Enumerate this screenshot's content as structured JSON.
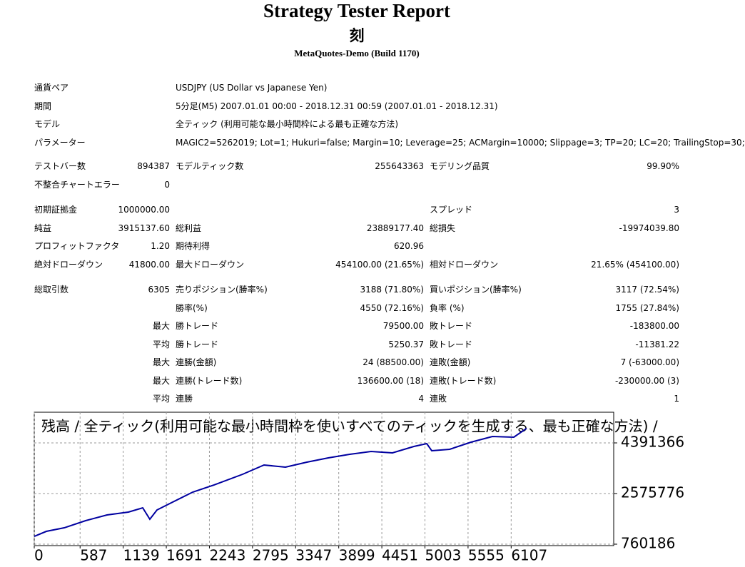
{
  "report": {
    "title": "Strategy Tester Report",
    "subtitle": "刻",
    "build": "MetaQuotes-Demo (Build 1170)",
    "rows": [
      [
        "通貨ペア",
        "USDJPY (US Dollar vs Japanese Yen)"
      ],
      [
        "期間",
        "5分足(M5) 2007.01.01 00:00 - 2018.12.31 00:59 (2007.01.01 - 2018.12.31)"
      ],
      [
        "モデル",
        "全ティック (利用可能な最小時間枠による最も正確な方法)"
      ],
      [
        "パラメーター",
        "MAGIC2=5262019; Lot=1; Hukuri=false; Margin=10; Leverage=25; ACMargin=10000; Slippage=3; TP=20; LC=20; TrailingStop=30;"
      ],
      [
        "テストバー数",
        "894387",
        "モデルティック数",
        "255643363",
        "モデリング品質",
        "99.90%"
      ],
      [
        "不整合チャートエラー",
        "0"
      ],
      [
        "初期証拠金",
        "1000000.00",
        "スプレッド",
        "3"
      ],
      [
        "純益",
        "3915137.60",
        "総利益",
        "23889177.40",
        "総損失",
        "-19974039.80"
      ],
      [
        "プロフィットファクタ",
        "1.20",
        "期待利得",
        "620.96"
      ],
      [
        "絶対ドローダウン",
        "41800.00",
        "最大ドローダウン",
        "454100.00 (21.65%)",
        "相対ドローダウン",
        "21.65% (454100.00)"
      ],
      [
        "総取引数",
        "6305",
        "売りポジション(勝率%)",
        "3188 (71.80%)",
        "買いポジション(勝率%)",
        "3117 (72.54%)"
      ],
      [
        "勝率(%)",
        "4550 (72.16%)",
        "負率 (%)",
        "1755 (27.84%)"
      ],
      [
        "最大",
        "勝トレード",
        "79500.00",
        "敗トレード",
        "-183800.00"
      ],
      [
        "平均",
        "勝トレード",
        "5250.37",
        "敗トレード",
        "-11381.22"
      ],
      [
        "最大",
        "連勝(金額)",
        "24 (88500.00)",
        "連敗(金額)",
        "7 (-63000.00)"
      ],
      [
        "最大",
        "連勝(トレード数)",
        "136600.00 (18)",
        "連敗(トレード数)",
        "-230000.00 (3)"
      ],
      [
        "平均",
        "連勝",
        "4",
        "連敗",
        "1"
      ]
    ]
  },
  "chart_data": {
    "type": "line",
    "title": "残高 / 全ティック(利用可能な最小時間枠を使いすべてのティックを生成する、最も正確な方法) /",
    "x": [
      0,
      155,
      384,
      658,
      932,
      1206,
      1389,
      1480,
      1572,
      1754,
      2029,
      2303,
      2668,
      2942,
      3217,
      3491,
      3765,
      4039,
      4313,
      4587,
      4861,
      5026,
      5090,
      5319,
      5592,
      5867,
      6141,
      6305
    ],
    "values": [
      1041000,
      1220000,
      1348000,
      1604000,
      1809000,
      1911000,
      2064000,
      1655000,
      1988000,
      2243000,
      2627000,
      2883000,
      3266000,
      3599000,
      3522000,
      3701000,
      3854000,
      3982000,
      4085000,
      4034000,
      4264000,
      4366000,
      4110000,
      4161000,
      4417000,
      4622000,
      4596000,
      4915000
    ],
    "color": "#0000a0",
    "xlim": [
      0,
      7420
    ],
    "xticks": [
      0,
      587,
      1139,
      1691,
      2243,
      2795,
      3347,
      3899,
      4451,
      5003,
      5555,
      6107
    ],
    "ylim": [
      709000,
      5491000
    ],
    "yticks": [
      760186,
      2575776,
      4391366
    ],
    "grid": true
  }
}
